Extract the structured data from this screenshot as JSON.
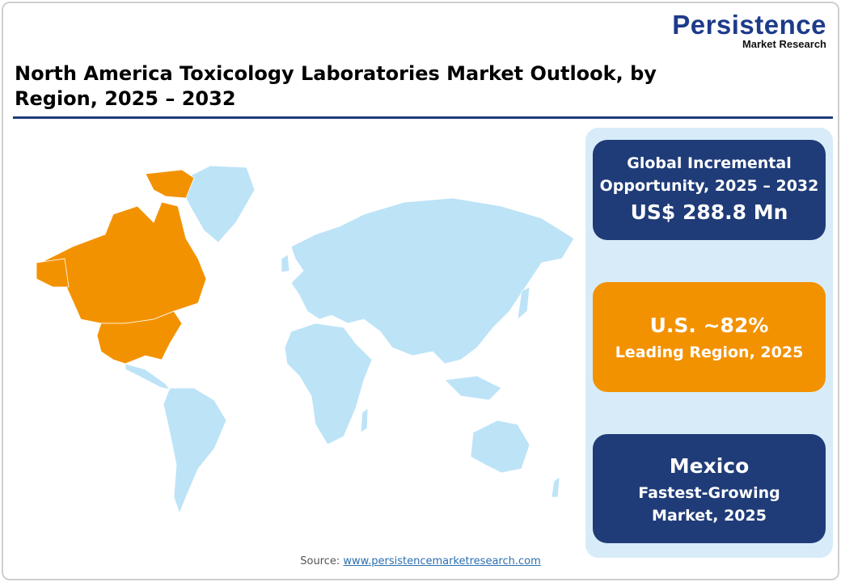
{
  "logo": {
    "name": "Persistence",
    "tagline": "Market Research"
  },
  "title": "North America Toxicology Laboratories Market Outlook, by Region, 2025 – 2032",
  "map": {
    "highlight_color": "#f39200",
    "base_color": "#bde3f7",
    "highlighted_region": "North America (Canada, U.S.)"
  },
  "cards": [
    {
      "label": "Global Incremental Opportunity, 2025 – 2032",
      "value": "US$ 288.8 Mn",
      "color": "#1f3c78"
    },
    {
      "value": "U.S. ~82%",
      "label": "Leading Region, 2025",
      "color": "#f39200"
    },
    {
      "value": "Mexico",
      "label": "Fastest-Growing Market, 2025",
      "color": "#1f3c78"
    }
  ],
  "source": {
    "label": "Source:",
    "link": "www.persistencemarketresearch.com"
  }
}
